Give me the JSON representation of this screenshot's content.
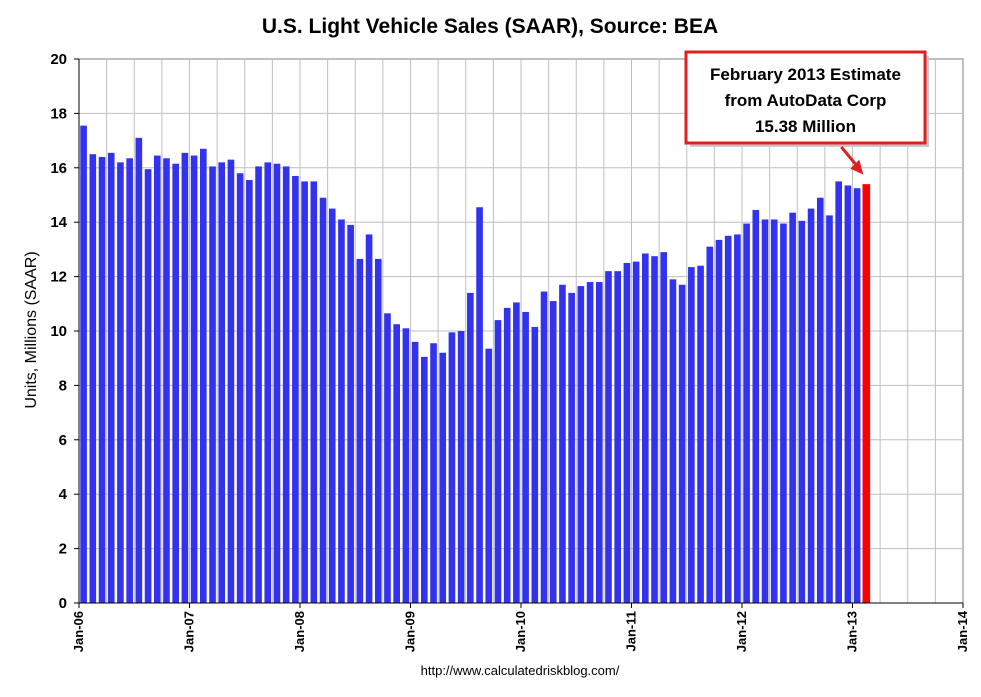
{
  "colors": {
    "bar": "#3333ee",
    "highlight_bar": "#ff0000",
    "grid": "#bfbfbf",
    "callout_border": "#e02020"
  },
  "chart_data": {
    "type": "bar",
    "title": "U.S. Light Vehicle Sales (SAAR), Source: BEA",
    "ylabel": "Units, Millions (SAAR)",
    "xlabel": "",
    "source": "http://www.calculatedriskblog.com/",
    "ylim": [
      0,
      20
    ],
    "ytick_step": 2,
    "grid": true,
    "x_start": "Jan-06",
    "x_tick_labels": [
      "Jan-06",
      "Jan-07",
      "Jan-08",
      "Jan-09",
      "Jan-10",
      "Jan-11",
      "Jan-12",
      "Jan-13",
      "Jan-14"
    ],
    "months_per_tick": 12,
    "months_total": 96,
    "series": [
      {
        "name": "Light Vehicle Sales",
        "values": [
          17.55,
          16.5,
          16.4,
          16.55,
          16.2,
          16.35,
          17.1,
          15.95,
          16.45,
          16.35,
          16.15,
          16.55,
          16.45,
          16.7,
          16.05,
          16.2,
          16.3,
          15.8,
          15.55,
          16.05,
          16.2,
          16.15,
          16.05,
          15.7,
          15.5,
          15.5,
          14.9,
          14.5,
          14.1,
          13.9,
          12.65,
          13.55,
          12.65,
          10.65,
          10.25,
          10.1,
          9.6,
          9.05,
          9.55,
          9.2,
          9.95,
          10.0,
          11.4,
          14.55,
          9.35,
          10.4,
          10.85,
          11.05,
          10.7,
          10.15,
          11.45,
          11.1,
          11.7,
          11.4,
          11.65,
          11.8,
          11.8,
          12.2,
          12.2,
          12.5,
          12.55,
          12.85,
          12.75,
          12.9,
          11.9,
          11.7,
          12.35,
          12.4,
          13.1,
          13.35,
          13.5,
          13.55,
          13.95,
          14.45,
          14.1,
          14.1,
          13.95,
          14.35,
          14.05,
          14.5,
          14.9,
          14.25,
          15.5,
          15.35,
          15.25,
          15.38
        ]
      }
    ],
    "highlight_index": 85,
    "annotation": {
      "lines": [
        "February  2013 Estimate",
        "from AutoData  Corp",
        "15.38 Million"
      ],
      "points_to": "last-bar"
    }
  }
}
